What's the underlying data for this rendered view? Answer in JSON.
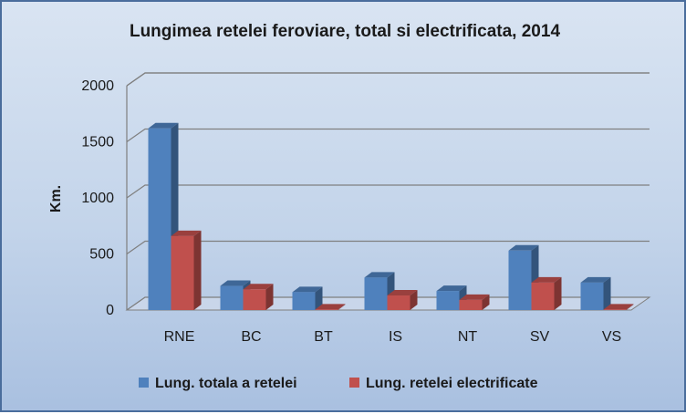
{
  "chart_data": {
    "type": "bar",
    "title": "Lungimea retelei feroviare, total si electrificata, 2014",
    "xlabel": "",
    "ylabel": "Km.",
    "ylim": [
      0,
      2000
    ],
    "yticks": [
      "0",
      "500",
      "1000",
      "1500",
      "2000"
    ],
    "categories": [
      "RNE",
      "BC",
      "BT",
      "IS",
      "NT",
      "SV",
      "VS"
    ],
    "series": [
      {
        "name": "Lung. totala a retelei",
        "color": "#4f81bd",
        "values": [
          1620,
          215,
          160,
          290,
          170,
          530,
          245
        ]
      },
      {
        "name": "Lung. retelei electrificate",
        "color": "#c0504d",
        "values": [
          660,
          185,
          5,
          130,
          90,
          245,
          5
        ]
      }
    ],
    "grid": true,
    "legend": "bottom",
    "style": "3d-clustered-column"
  }
}
